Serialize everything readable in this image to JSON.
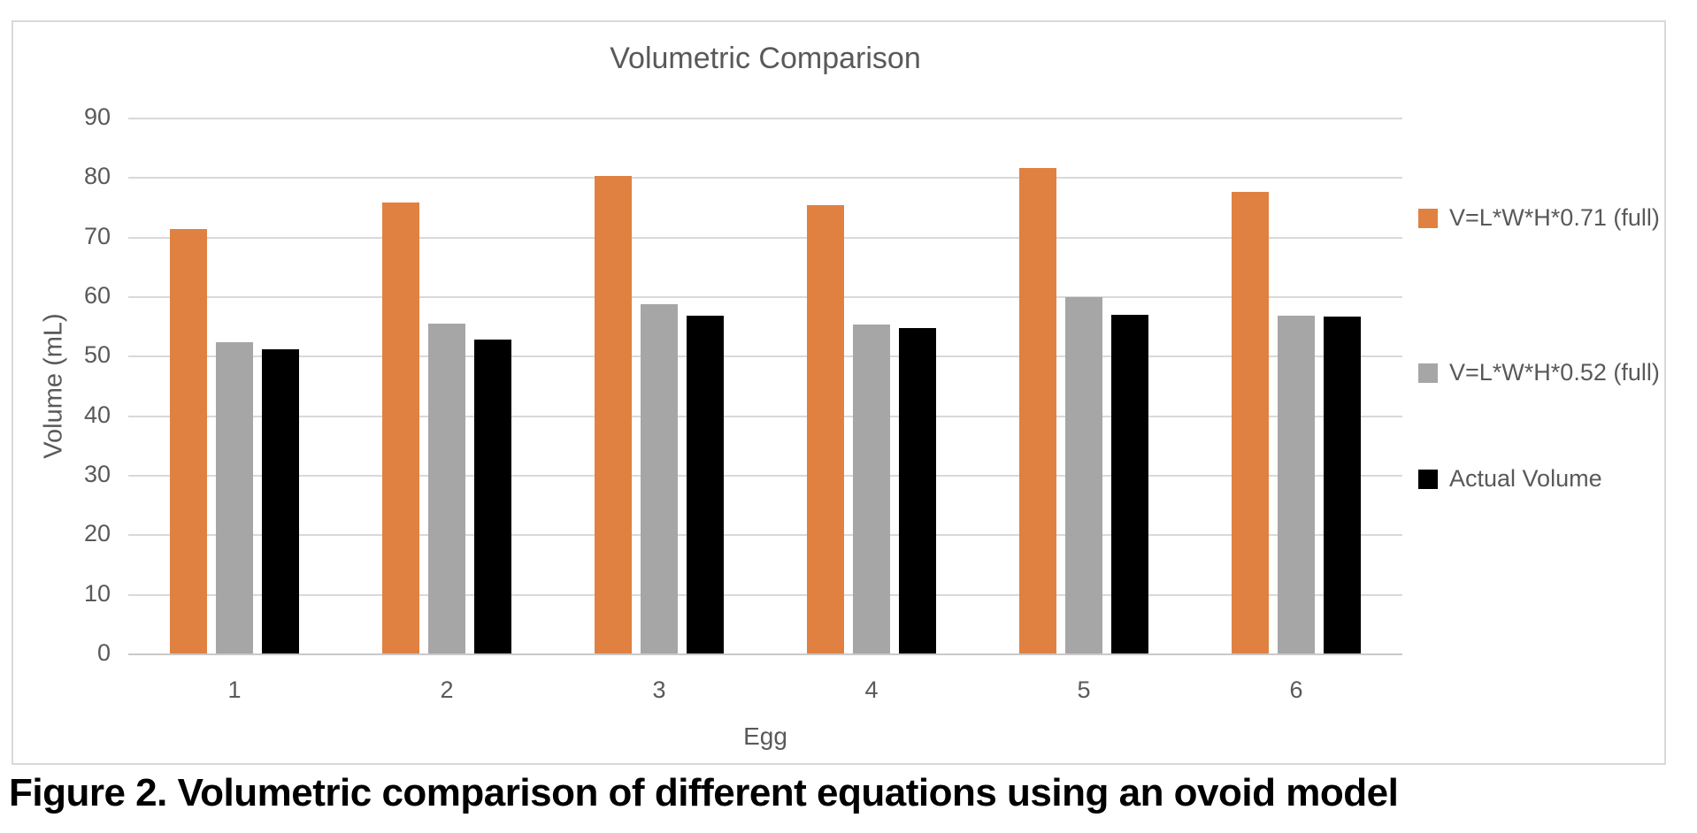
{
  "figure": {
    "caption": "Figure 2. Volumetric comparison of different equations using an ovoid model"
  },
  "chart_data": {
    "type": "bar",
    "title": "Volumetric Comparison",
    "xlabel": "Egg",
    "ylabel": "Volume (mL)",
    "ylim": [
      0,
      90
    ],
    "ytick_interval": 10,
    "yticks": [
      90,
      80,
      70,
      60,
      50,
      40,
      30,
      20,
      10,
      0
    ],
    "categories": [
      "1",
      "2",
      "3",
      "4",
      "5",
      "6"
    ],
    "grid": true,
    "legend_position": "right",
    "series": [
      {
        "name": "V=L*W*H*0.71 (full)",
        "color": "#E08142",
        "values": [
          71.3,
          75.7,
          80.2,
          75.3,
          81.6,
          77.5
        ]
      },
      {
        "name": "V=L*W*H*0.52 (full)",
        "color": "#A6A6A6",
        "values": [
          52.3,
          55.4,
          58.7,
          55.2,
          59.8,
          56.8
        ]
      },
      {
        "name": "Actual Volume",
        "color": "#000000",
        "values": [
          51.1,
          52.7,
          56.8,
          54.6,
          56.9,
          56.6
        ]
      }
    ],
    "styles": {
      "gridline_color": "#D9D9D9",
      "axis_line_color": "#C9C9C9",
      "text_color": "#595959",
      "chart_border_color": "#D9D9D9"
    }
  }
}
